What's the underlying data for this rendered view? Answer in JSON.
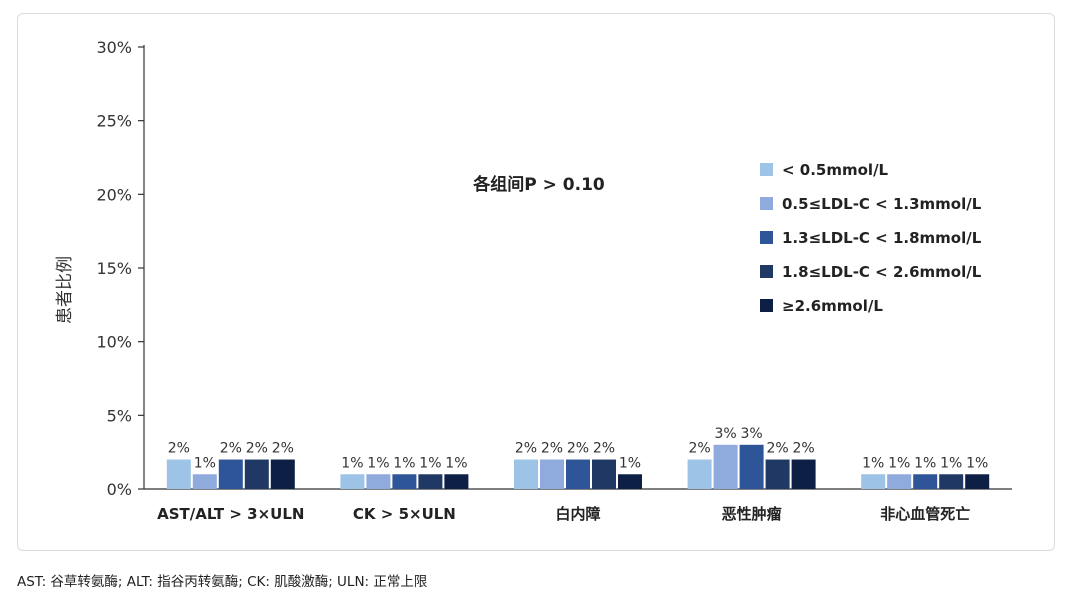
{
  "chart_data": {
    "type": "bar",
    "ylabel": "患者比例",
    "ylim": [
      0,
      0.3
    ],
    "y_ticks": [
      "0%",
      "5%",
      "10%",
      "15%",
      "20%",
      "25%",
      "30%"
    ],
    "annotation": "各组间P > 0.10",
    "categories": [
      "AST/ALT > 3×ULN",
      "CK > 5×ULN",
      "白内障",
      "恶性肿瘤",
      "非心血管死亡"
    ],
    "series": [
      {
        "name": "< 0.5mmol/L",
        "color": "#9dc3e6",
        "values": [
          0.02,
          0.01,
          0.02,
          0.02,
          0.01
        ],
        "labels": [
          "2%",
          "1%",
          "2%",
          "2%",
          "1%"
        ]
      },
      {
        "name": "0.5≤LDL-C < 1.3mmol/L",
        "color": "#8faadc",
        "values": [
          0.01,
          0.01,
          0.02,
          0.03,
          0.01
        ],
        "labels": [
          "1%",
          "1%",
          "2%",
          "3%",
          "1%"
        ]
      },
      {
        "name": "1.3≤LDL-C < 1.8mmol/L",
        "color": "#2e5597",
        "values": [
          0.02,
          0.01,
          0.02,
          0.03,
          0.01
        ],
        "labels": [
          "2%",
          "1%",
          "2%",
          "3%",
          "1%"
        ]
      },
      {
        "name": "1.8≤LDL-C < 2.6mmol/L",
        "color": "#1f3864",
        "values": [
          0.02,
          0.01,
          0.02,
          0.02,
          0.01
        ],
        "labels": [
          "2%",
          "1%",
          "2%",
          "2%",
          "1%"
        ]
      },
      {
        "name": "≥2.6mmol/L",
        "color": "#0d1f45",
        "values": [
          0.02,
          0.01,
          0.01,
          0.02,
          0.01
        ],
        "labels": [
          "2%",
          "1%",
          "1%",
          "2%",
          "1%"
        ]
      }
    ],
    "legend_position": "right",
    "grid": false
  },
  "footnote": "AST: 谷草转氨酶; ALT: 指谷丙转氨酶; CK: 肌酸激酶; ULN: 正常上限"
}
